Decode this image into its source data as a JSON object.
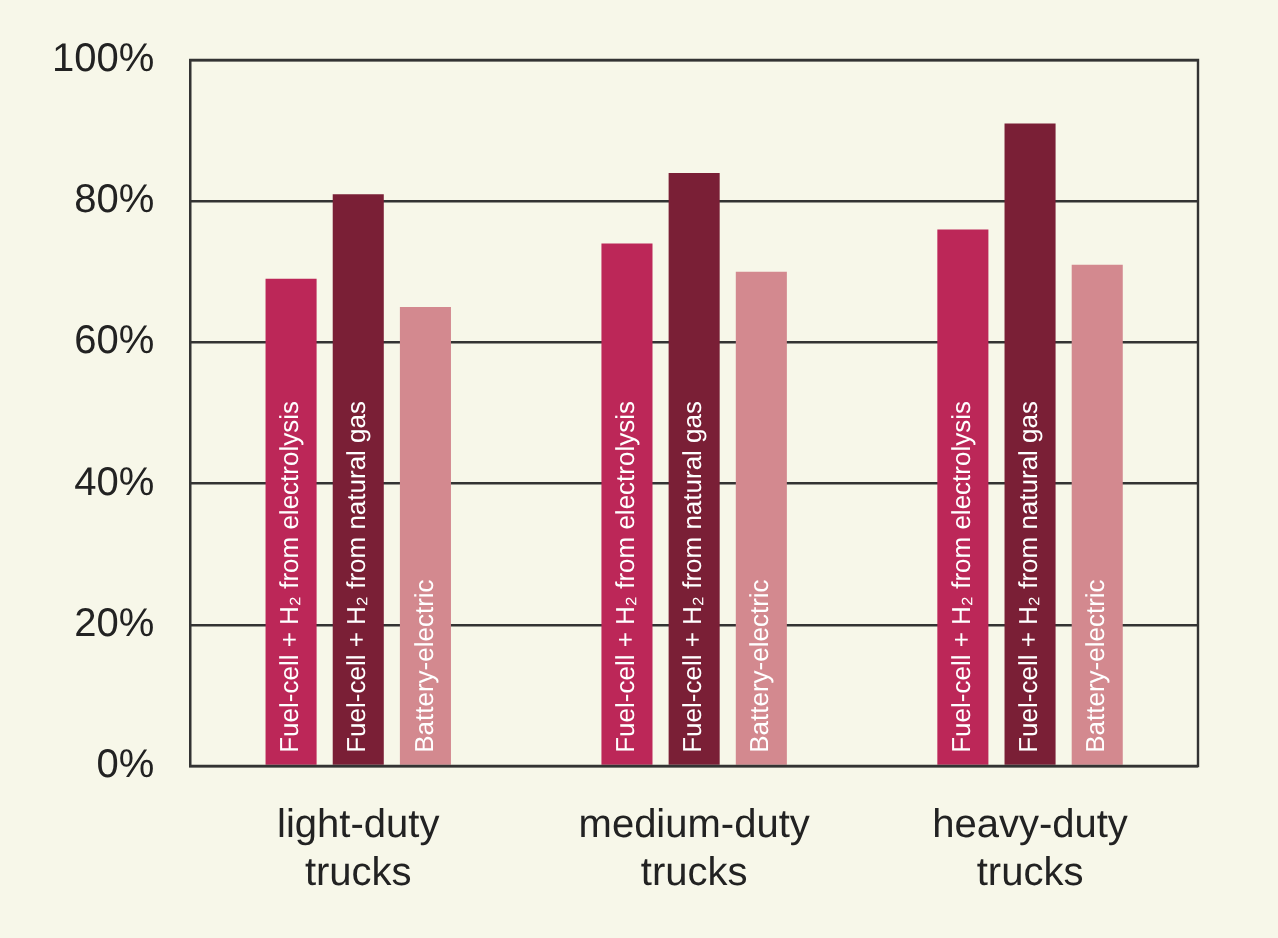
{
  "chart_data": {
    "type": "bar",
    "categories": [
      "light-duty trucks",
      "medium-duty trucks",
      "heavy-duty trucks"
    ],
    "series": [
      {
        "name": "Fuel-cell + H₂ from electrolysis",
        "color": "#bc2758",
        "values": [
          69,
          74,
          76
        ]
      },
      {
        "name": "Fuel-cell + H₂ from natural gas",
        "color": "#7a1f36",
        "values": [
          81,
          84,
          91
        ]
      },
      {
        "name": "Battery-electric",
        "color": "#d3898f",
        "values": [
          65,
          70,
          71
        ]
      }
    ],
    "ylim": [
      0,
      100
    ],
    "yticks": [
      {
        "value": 0,
        "label": "0%"
      },
      {
        "value": 20,
        "label": "20%"
      },
      {
        "value": 40,
        "label": "40%"
      },
      {
        "value": 60,
        "label": "60%"
      },
      {
        "value": 80,
        "label": "80%"
      },
      {
        "value": 100,
        "label": "100%"
      }
    ],
    "grid": "y",
    "legend": false
  }
}
